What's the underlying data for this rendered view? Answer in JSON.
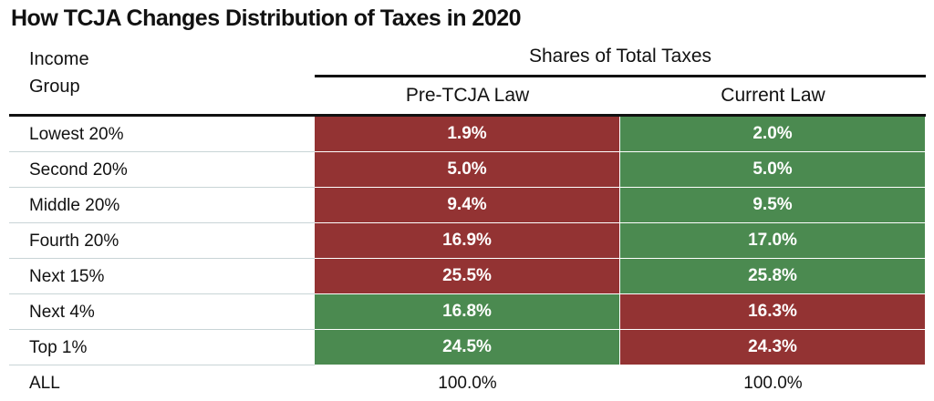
{
  "title": "How TCJA Changes Distribution of Taxes in 2020",
  "header": {
    "group": "Income Group",
    "shares": "Shares of Total Taxes",
    "columns": [
      "Pre-TCJA Law",
      "Current Law"
    ]
  },
  "table": {
    "rows": [
      {
        "label": "Lowest 20%",
        "pre": "1.9%",
        "current": "2.0%",
        "pre_color": "#933333",
        "current_color": "#4b8a50"
      },
      {
        "label": "Second 20%",
        "pre": "5.0%",
        "current": "5.0%",
        "pre_color": "#933333",
        "current_color": "#4b8a50"
      },
      {
        "label": "Middle 20%",
        "pre": "9.4%",
        "current": "9.5%",
        "pre_color": "#933333",
        "current_color": "#4b8a50"
      },
      {
        "label": "Fourth 20%",
        "pre": "16.9%",
        "current": "17.0%",
        "pre_color": "#933333",
        "current_color": "#4b8a50"
      },
      {
        "label": "Next 15%",
        "pre": "25.5%",
        "current": "25.8%",
        "pre_color": "#933333",
        "current_color": "#4b8a50"
      },
      {
        "label": "Next 4%",
        "pre": "16.8%",
        "current": "16.3%",
        "pre_color": "#4b8a50",
        "current_color": "#933333"
      },
      {
        "label": "Top 1%",
        "pre": "24.5%",
        "current": "24.3%",
        "pre_color": "#4b8a50",
        "current_color": "#933333"
      },
      {
        "label": "ALL",
        "pre": "100.0%",
        "current": "100.0%"
      }
    ]
  }
}
